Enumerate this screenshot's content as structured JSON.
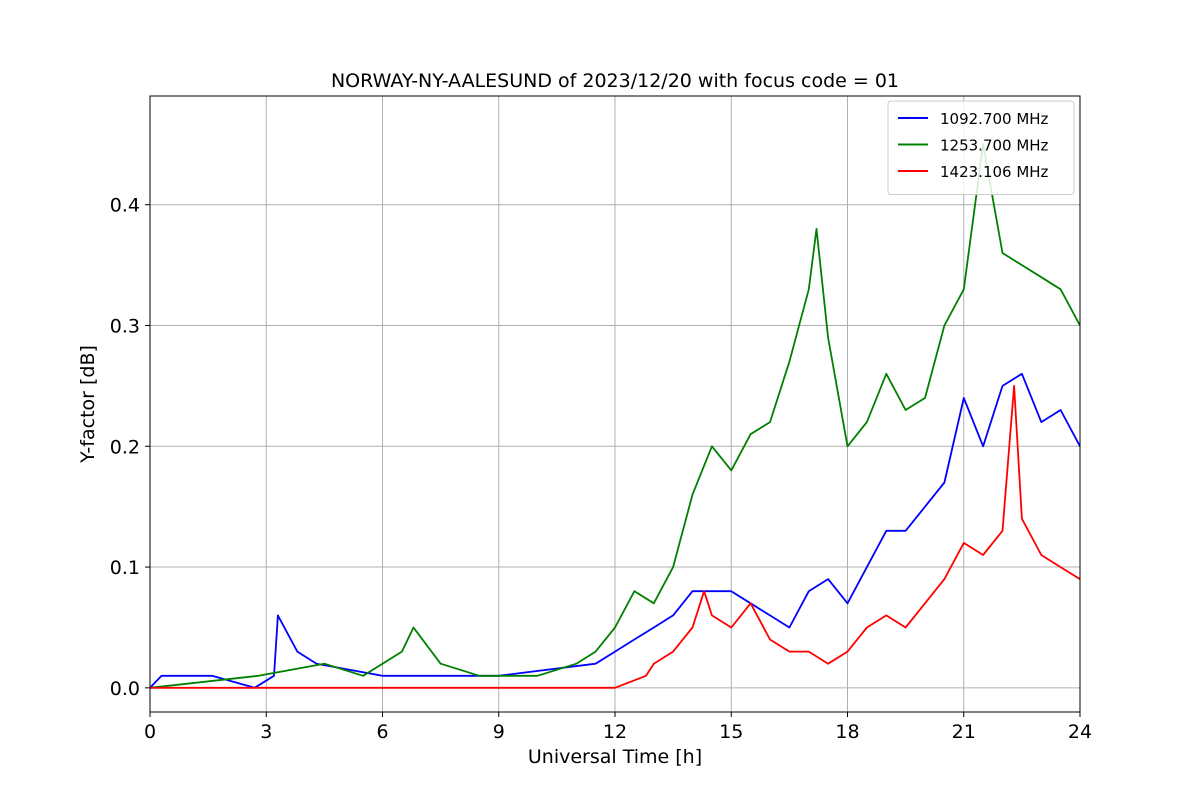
{
  "chart_data": {
    "type": "line",
    "title": "NORWAY-NY-AALESUND of 2023/12/20 with focus code = 01",
    "xlabel": "Universal Time [h]",
    "ylabel": "Y-factor [dB]",
    "xlim": [
      0,
      24
    ],
    "ylim": [
      -0.02,
      0.49
    ],
    "xticks": [
      0,
      3,
      6,
      9,
      12,
      15,
      18,
      21,
      24
    ],
    "xtick_labels": [
      "0",
      "3",
      "6",
      "9",
      "12",
      "15",
      "18",
      "21",
      "24"
    ],
    "yticks": [
      0.0,
      0.1,
      0.2,
      0.3,
      0.4
    ],
    "ytick_labels": [
      "0.0",
      "0.1",
      "0.2",
      "0.3",
      "0.4"
    ],
    "grid": true,
    "legend_position": "top-right",
    "series": [
      {
        "name": "1092.700 MHz",
        "color": "#0000ff",
        "x": [
          0,
          0.3,
          1.0,
          1.6,
          2.7,
          3.2,
          3.3,
          3.8,
          4.3,
          6.0,
          9.0,
          11.5,
          12.0,
          12.5,
          13.0,
          13.5,
          14.0,
          14.5,
          15.0,
          15.5,
          16.0,
          16.5,
          17.0,
          17.5,
          18.0,
          18.5,
          19.0,
          19.5,
          20.0,
          20.5,
          21.0,
          21.5,
          22.0,
          22.5,
          23.0,
          23.5,
          24.0
        ],
        "y": [
          0.0,
          0.01,
          0.01,
          0.01,
          0.0,
          0.01,
          0.06,
          0.03,
          0.02,
          0.01,
          0.01,
          0.02,
          0.03,
          0.04,
          0.05,
          0.06,
          0.08,
          0.08,
          0.08,
          0.07,
          0.06,
          0.05,
          0.08,
          0.09,
          0.07,
          0.1,
          0.13,
          0.13,
          0.15,
          0.17,
          0.24,
          0.2,
          0.25,
          0.26,
          0.22,
          0.23,
          0.2
        ]
      },
      {
        "name": "1253.700 MHz",
        "color": "#008000",
        "x": [
          0,
          2.8,
          4.5,
          5.5,
          6.5,
          6.8,
          7.5,
          8.5,
          10.0,
          11.0,
          11.5,
          12.0,
          12.5,
          13.0,
          13.5,
          14.0,
          14.5,
          15.0,
          15.5,
          16.0,
          16.5,
          17.0,
          17.2,
          17.5,
          18.0,
          18.5,
          19.0,
          19.5,
          20.0,
          20.5,
          21.0,
          21.5,
          22.0,
          22.5,
          23.0,
          23.5,
          24.0
        ],
        "y": [
          0.0,
          0.01,
          0.02,
          0.01,
          0.03,
          0.05,
          0.02,
          0.01,
          0.01,
          0.02,
          0.03,
          0.05,
          0.08,
          0.07,
          0.1,
          0.16,
          0.2,
          0.18,
          0.21,
          0.22,
          0.27,
          0.33,
          0.38,
          0.29,
          0.2,
          0.22,
          0.26,
          0.23,
          0.24,
          0.3,
          0.33,
          0.45,
          0.36,
          0.35,
          0.34,
          0.33,
          0.3
        ]
      },
      {
        "name": "1423.106 MHz",
        "color": "#ff0000",
        "x": [
          0,
          12.0,
          12.8,
          13.0,
          13.5,
          14.0,
          14.3,
          14.5,
          15.0,
          15.5,
          16.0,
          16.5,
          17.0,
          17.5,
          18.0,
          18.5,
          19.0,
          19.5,
          20.0,
          20.5,
          21.0,
          21.5,
          22.0,
          22.3,
          22.5,
          23.0,
          23.5,
          24.0
        ],
        "y": [
          0.0,
          0.0,
          0.01,
          0.02,
          0.03,
          0.05,
          0.08,
          0.06,
          0.05,
          0.07,
          0.04,
          0.03,
          0.03,
          0.02,
          0.03,
          0.05,
          0.06,
          0.05,
          0.07,
          0.09,
          0.12,
          0.11,
          0.13,
          0.25,
          0.14,
          0.11,
          0.1,
          0.09
        ]
      }
    ]
  }
}
